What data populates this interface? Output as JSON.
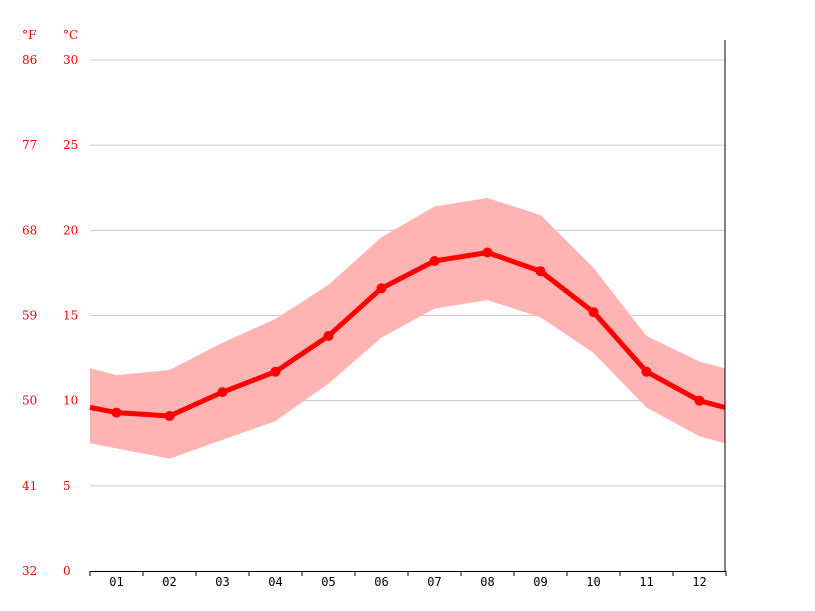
{
  "chart_data": {
    "type": "area",
    "title": "",
    "xlabel": "",
    "ylabel": "",
    "categories": [
      "01",
      "02",
      "03",
      "04",
      "05",
      "06",
      "07",
      "08",
      "09",
      "10",
      "11",
      "12"
    ],
    "y_left_unit": "°F",
    "y_right_unit": "°C",
    "y_ticks_f": [
      "86",
      "77",
      "68",
      "59",
      "50",
      "41",
      "32"
    ],
    "y_ticks_c": [
      "30",
      "25",
      "20",
      "15",
      "10",
      "5",
      "0"
    ],
    "ylim_c": [
      0,
      30
    ],
    "grid": true,
    "series": [
      {
        "values": [
          9.3,
          9.1,
          10.5,
          11.7,
          13.8,
          16.6,
          18.2,
          18.7,
          17.6,
          15.2,
          11.7,
          10.0
        ],
        "start_value": 9.6,
        "end_value": 9.6
      }
    ],
    "band": {
      "upper": [
        11.5,
        11.8,
        13.4,
        14.8,
        16.8,
        19.6,
        21.4,
        21.9,
        20.9,
        17.8,
        13.8,
        12.3
      ],
      "lower": [
        7.2,
        6.6,
        7.7,
        8.8,
        11.0,
        13.7,
        15.4,
        15.9,
        14.9,
        12.8,
        9.6,
        7.9
      ],
      "start_upper": 11.9,
      "end_upper": 11.9,
      "start_lower": 7.5,
      "end_lower": 7.5
    },
    "colors": {
      "line": "#ff0000",
      "band": "#ffb3b3",
      "y_labels": "#ff0000",
      "x_labels": "#000000"
    }
  }
}
